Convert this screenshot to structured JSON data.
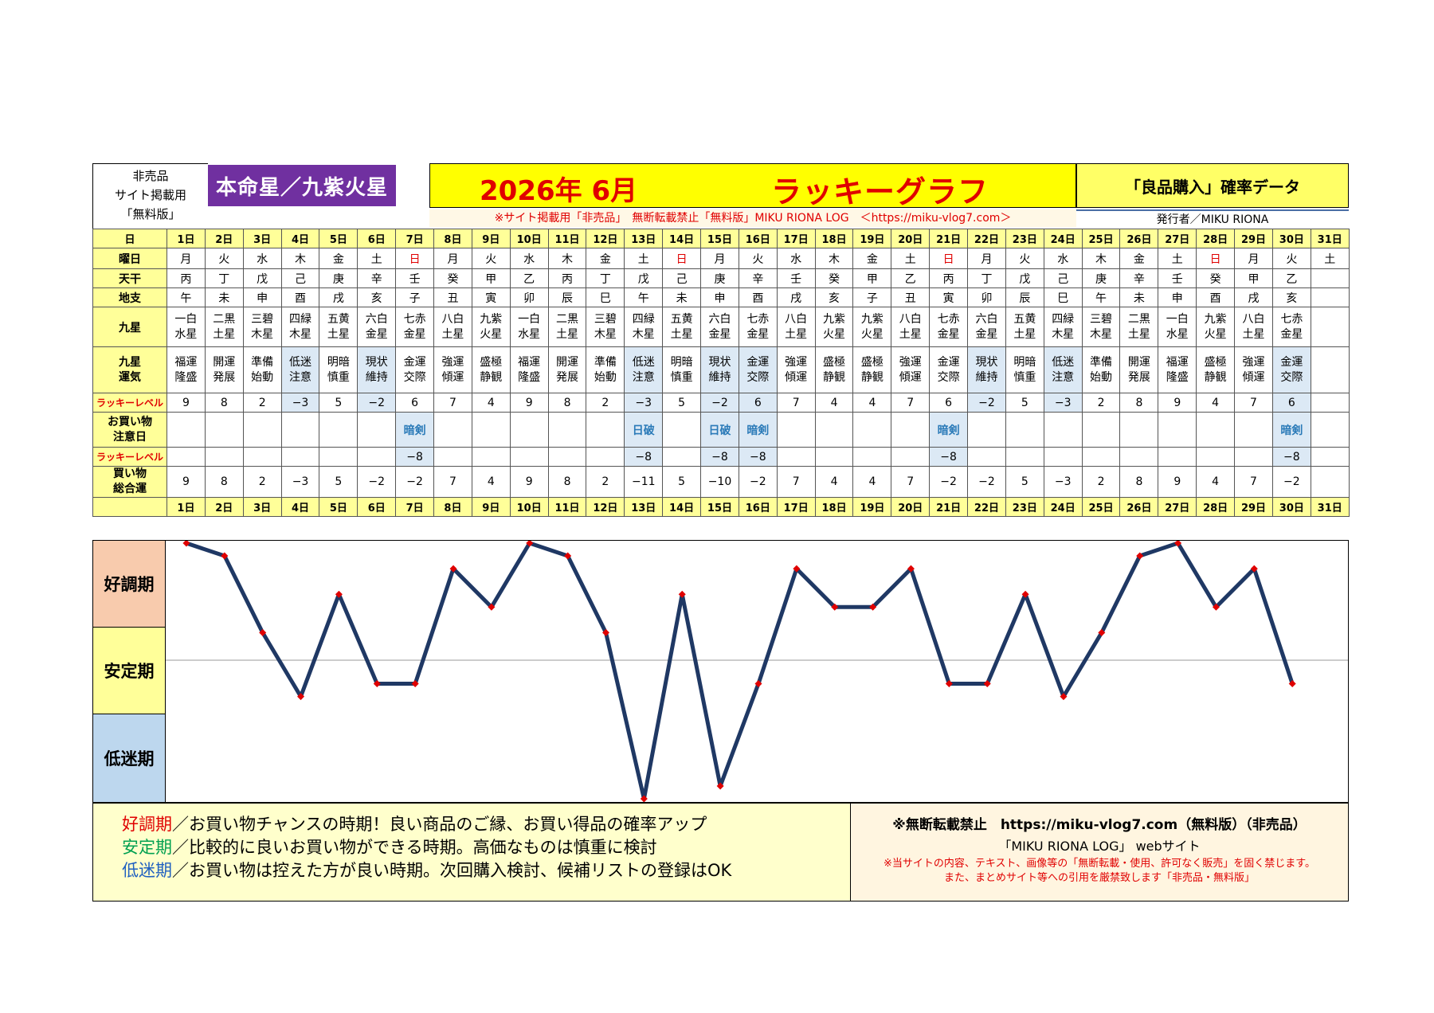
{
  "header": {
    "left_lines": [
      "非売品",
      "サイト掲載用",
      "「無料版」"
    ],
    "honmei": "本命星／九紫火星",
    "year_month": "2026年 6月",
    "lucky_graph": "ラッキーグラフ",
    "right_title": "「良品購入」確率データ",
    "notice": "※サイト掲載用「非売品」　無断転載禁止「無料版」MIKU RIONA LOG　＜https://miku-vlog7.com＞",
    "publisher": "発行者／MIKU RIONA"
  },
  "row_labels": {
    "day": "日",
    "weekday": "曜日",
    "tenkan": "天干",
    "chishi": "地支",
    "kyusei": "九星",
    "kyusei_unki_1": "九星",
    "kyusei_unki_2": "運気",
    "lucky_level": "ラッキーレベル",
    "caution_1": "お買い物",
    "caution_2": "注意日",
    "lucky_level2": "ラッキーレベル",
    "total_1": "買い物",
    "total_2": "総合運"
  },
  "days": [
    "1日",
    "2日",
    "3日",
    "4日",
    "5日",
    "6日",
    "7日",
    "8日",
    "9日",
    "10日",
    "11日",
    "12日",
    "13日",
    "14日",
    "15日",
    "16日",
    "17日",
    "18日",
    "19日",
    "20日",
    "21日",
    "22日",
    "23日",
    "24日",
    "25日",
    "26日",
    "27日",
    "28日",
    "29日",
    "30日",
    "31日"
  ],
  "weekdays": [
    "月",
    "火",
    "水",
    "木",
    "金",
    "土",
    "日",
    "月",
    "火",
    "水",
    "木",
    "金",
    "土",
    "日",
    "月",
    "火",
    "水",
    "木",
    "金",
    "土",
    "日",
    "月",
    "火",
    "水",
    "木",
    "金",
    "土",
    "日",
    "月",
    "火",
    "土"
  ],
  "tenkan": [
    "丙",
    "丁",
    "戊",
    "己",
    "庚",
    "辛",
    "壬",
    "癸",
    "甲",
    "乙",
    "丙",
    "丁",
    "戊",
    "己",
    "庚",
    "辛",
    "壬",
    "癸",
    "甲",
    "乙",
    "丙",
    "丁",
    "戊",
    "己",
    "庚",
    "辛",
    "壬",
    "癸",
    "甲",
    "乙",
    ""
  ],
  "chishi": [
    "午",
    "未",
    "申",
    "酉",
    "戌",
    "亥",
    "子",
    "丑",
    "寅",
    "卯",
    "辰",
    "巳",
    "午",
    "未",
    "申",
    "酉",
    "戌",
    "亥",
    "子",
    "丑",
    "寅",
    "卯",
    "辰",
    "巳",
    "午",
    "未",
    "申",
    "酉",
    "戌",
    "亥",
    ""
  ],
  "kyusei": [
    [
      "一白",
      "水星"
    ],
    [
      "二黒",
      "土星"
    ],
    [
      "三碧",
      "木星"
    ],
    [
      "四緑",
      "木星"
    ],
    [
      "五黄",
      "土星"
    ],
    [
      "六白",
      "金星"
    ],
    [
      "七赤",
      "金星"
    ],
    [
      "八白",
      "土星"
    ],
    [
      "九紫",
      "火星"
    ],
    [
      "一白",
      "水星"
    ],
    [
      "二黒",
      "土星"
    ],
    [
      "三碧",
      "木星"
    ],
    [
      "四緑",
      "木星"
    ],
    [
      "五黄",
      "土星"
    ],
    [
      "六白",
      "金星"
    ],
    [
      "七赤",
      "金星"
    ],
    [
      "八白",
      "土星"
    ],
    [
      "九紫",
      "火星"
    ],
    [
      "九紫",
      "火星"
    ],
    [
      "八白",
      "土星"
    ],
    [
      "七赤",
      "金星"
    ],
    [
      "六白",
      "金星"
    ],
    [
      "五黄",
      "土星"
    ],
    [
      "四緑",
      "木星"
    ],
    [
      "三碧",
      "木星"
    ],
    [
      "二黒",
      "土星"
    ],
    [
      "一白",
      "水星"
    ],
    [
      "九紫",
      "火星"
    ],
    [
      "八白",
      "土星"
    ],
    [
      "七赤",
      "金星"
    ],
    [
      "",
      ""
    ]
  ],
  "unki": [
    [
      "福運",
      "隆盛"
    ],
    [
      "開運",
      "発展"
    ],
    [
      "準備",
      "始動"
    ],
    [
      "低迷",
      "注意"
    ],
    [
      "明暗",
      "慎重"
    ],
    [
      "現状",
      "維持"
    ],
    [
      "金運",
      "交際"
    ],
    [
      "強運",
      "傾運"
    ],
    [
      "盛極",
      "静観"
    ],
    [
      "福運",
      "隆盛"
    ],
    [
      "開運",
      "発展"
    ],
    [
      "準備",
      "始動"
    ],
    [
      "低迷",
      "注意"
    ],
    [
      "明暗",
      "慎重"
    ],
    [
      "現状",
      "維持"
    ],
    [
      "金運",
      "交際"
    ],
    [
      "強運",
      "傾運"
    ],
    [
      "盛極",
      "静観"
    ],
    [
      "盛極",
      "静観"
    ],
    [
      "強運",
      "傾運"
    ],
    [
      "金運",
      "交際"
    ],
    [
      "現状",
      "維持"
    ],
    [
      "明暗",
      "慎重"
    ],
    [
      "低迷",
      "注意"
    ],
    [
      "準備",
      "始動"
    ],
    [
      "開運",
      "発展"
    ],
    [
      "福運",
      "隆盛"
    ],
    [
      "盛極",
      "静観"
    ],
    [
      "強運",
      "傾運"
    ],
    [
      "金運",
      "交際"
    ],
    [
      "",
      ""
    ]
  ],
  "lucky_level": [
    "9",
    "8",
    "2",
    "−3",
    "5",
    "−2",
    "6",
    "7",
    "4",
    "9",
    "8",
    "2",
    "−3",
    "5",
    "−2",
    "6",
    "7",
    "4",
    "4",
    "7",
    "6",
    "−2",
    "5",
    "−3",
    "2",
    "8",
    "9",
    "4",
    "7",
    "6",
    ""
  ],
  "caution": [
    "",
    "",
    "",
    "",
    "",
    "",
    "暗剣",
    "",
    "",
    "",
    "",
    "",
    "日破",
    "",
    "日破",
    "暗剣",
    "",
    "",
    "",
    "",
    "暗剣",
    "",
    "",
    "",
    "",
    "",
    "",
    "",
    "",
    "暗剣",
    ""
  ],
  "lucky_level2": [
    "",
    "",
    "",
    "",
    "",
    "",
    "−8",
    "",
    "",
    "",
    "",
    "",
    "−8",
    "",
    "−8",
    "−8",
    "",
    "",
    "",
    "",
    "−8",
    "",
    "",
    "",
    "",
    "",
    "",
    "",
    "",
    "−8",
    ""
  ],
  "total": [
    "9",
    "8",
    "2",
    "−3",
    "5",
    "−2",
    "−2",
    "7",
    "4",
    "9",
    "8",
    "2",
    "−11",
    "5",
    "−10",
    "−2",
    "7",
    "4",
    "4",
    "7",
    "−2",
    "−2",
    "5",
    "−3",
    "2",
    "8",
    "9",
    "4",
    "7",
    "−2",
    ""
  ],
  "phases": {
    "good": "好調期",
    "stable": "安定期",
    "low": "低迷期"
  },
  "chart_data": {
    "type": "line",
    "x": [
      1,
      2,
      3,
      4,
      5,
      6,
      7,
      8,
      9,
      10,
      11,
      12,
      13,
      14,
      15,
      16,
      17,
      18,
      19,
      20,
      21,
      22,
      23,
      24,
      25,
      26,
      27,
      28,
      29,
      30
    ],
    "series": [
      {
        "values": [
          9,
          8,
          2,
          -3,
          5,
          -2,
          -2,
          7,
          4,
          9,
          8,
          2,
          -11,
          5,
          -10,
          -2,
          7,
          4,
          4,
          7,
          -2,
          -2,
          5,
          -3,
          2,
          8,
          9,
          4,
          7,
          -2
        ]
      }
    ],
    "ylim": [
      -11,
      9
    ],
    "line_color": "#1f3864",
    "marker_color": "#e00000",
    "reference_line": 0
  },
  "legend": {
    "good_key": "好調期",
    "good_text": "／お買い物チャンスの時期！良い商品のご縁、お買い得品の確率アップ",
    "stable_key": "安定期",
    "stable_text": "／比較的に良いお買い物ができる時期。高価なものは慎重に検討",
    "low_key": "低迷期",
    "low_text": "／お買い物は控えた方が良い時期。次回購入検討、候補リストの登録はOK"
  },
  "footer": {
    "line1": "※無断転載禁止　https://miku-vlog7.com（無料版）（非売品）",
    "line2": "「MIKU RIONA LOG」 webサイト",
    "line3": "※当サイトの内容、テキスト、画像等の「無断転載・使用、許可なく販売」を固く禁じます。",
    "line4": "また、まとめサイト等への引用を厳禁致します「非売品・無料版」"
  }
}
